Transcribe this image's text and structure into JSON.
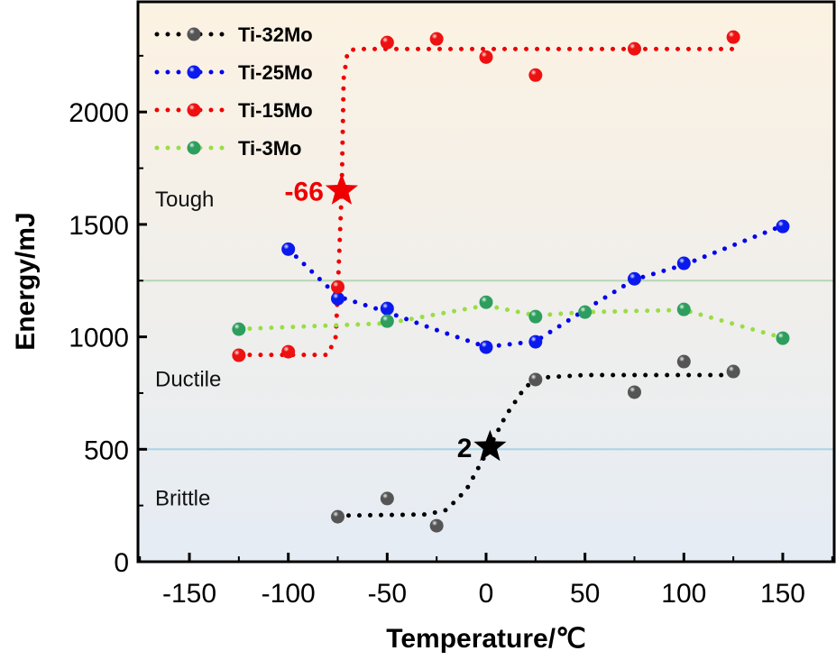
{
  "chart_data": {
    "type": "scatter",
    "title": "",
    "xlabel": "Temperature/℃",
    "ylabel": "Energy/mJ",
    "xlim": [
      -176,
      176
    ],
    "ylim": [
      0,
      2490
    ],
    "xticks": [
      -150,
      -100,
      -50,
      0,
      50,
      100,
      150
    ],
    "xtick_labels": [
      "-150",
      "-100",
      "-50",
      "0",
      "50",
      "100",
      "150"
    ],
    "yticks": [
      0,
      500,
      1000,
      1500,
      2000
    ],
    "ytick_labels": [
      "0",
      "500",
      "1000",
      "1500",
      "2000"
    ],
    "legend_position": "top-left",
    "series": [
      {
        "name": "Ti-32Mo",
        "line_color": "#000000",
        "marker_color": "#555555",
        "points": [
          [
            -75,
            200
          ],
          [
            -50,
            281
          ],
          [
            -25,
            160
          ],
          [
            25,
            810
          ],
          [
            75,
            754
          ],
          [
            100,
            890
          ],
          [
            125,
            846
          ]
        ],
        "fit": [
          [
            -75,
            205
          ],
          [
            -30,
            210
          ],
          [
            -20,
            230
          ],
          [
            -10,
            320
          ],
          [
            0,
            480
          ],
          [
            10,
            650
          ],
          [
            20,
            780
          ],
          [
            30,
            820
          ],
          [
            50,
            830
          ],
          [
            125,
            830
          ]
        ]
      },
      {
        "name": "Ti-25Mo",
        "line_color": "#0000ee",
        "marker_color": "#0a1aee",
        "points": [
          [
            -100,
            1390
          ],
          [
            -75,
            1170
          ],
          [
            -50,
            1126
          ],
          [
            0,
            954
          ],
          [
            25,
            978
          ],
          [
            75,
            1258
          ],
          [
            100,
            1327
          ],
          [
            150,
            1491
          ]
        ],
        "fit": [
          [
            -100,
            1390
          ],
          [
            -75,
            1180
          ],
          [
            -50,
            1110
          ],
          [
            -25,
            1030
          ],
          [
            0,
            955
          ],
          [
            25,
            980
          ],
          [
            50,
            1120
          ],
          [
            75,
            1255
          ],
          [
            100,
            1320
          ],
          [
            150,
            1495
          ]
        ]
      },
      {
        "name": "Ti-15Mo",
        "line_color": "#ee0000",
        "marker_color": "#ee1111",
        "points": [
          [
            -125,
            918
          ],
          [
            -100,
            934
          ],
          [
            -75,
            1222
          ],
          [
            -50,
            2309
          ],
          [
            -25,
            2325
          ],
          [
            0,
            2244
          ],
          [
            25,
            2164
          ],
          [
            75,
            2281
          ],
          [
            125,
            2333
          ]
        ],
        "fit": [
          [
            -125,
            920
          ],
          [
            -80,
            920
          ],
          [
            -76,
            1000
          ],
          [
            -75,
            1200
          ],
          [
            -73,
            1650
          ],
          [
            -72,
            2150
          ],
          [
            -70,
            2270
          ],
          [
            -66,
            2280
          ],
          [
            125,
            2280
          ]
        ]
      },
      {
        "name": "Ti-3Mo",
        "line_color": "#99dd44",
        "marker_color": "#2e9e5e",
        "points": [
          [
            -125,
            1034
          ],
          [
            -50,
            1070
          ],
          [
            0,
            1154
          ],
          [
            25,
            1090
          ],
          [
            50,
            1110
          ],
          [
            100,
            1122
          ],
          [
            150,
            994
          ]
        ],
        "fit": [
          [
            -125,
            1035
          ],
          [
            -50,
            1060
          ],
          [
            0,
            1140
          ],
          [
            25,
            1095
          ],
          [
            50,
            1110
          ],
          [
            100,
            1120
          ],
          [
            150,
            995
          ]
        ]
      }
    ],
    "reference_lines": [
      {
        "y": 1250,
        "color": "#b5d6b5"
      },
      {
        "y": 500,
        "color": "#a8d4ea"
      }
    ],
    "zones": [
      {
        "label": "Tough",
        "y": 1580
      },
      {
        "label": "Ductile",
        "y": 780
      },
      {
        "label": "Brittle",
        "y": 250
      }
    ],
    "annotations": [
      {
        "label": "-66",
        "x": -73,
        "y": 1650,
        "color": "#ee0000"
      },
      {
        "label": "2",
        "x": 2,
        "y": 510,
        "color": "#000000"
      }
    ]
  }
}
